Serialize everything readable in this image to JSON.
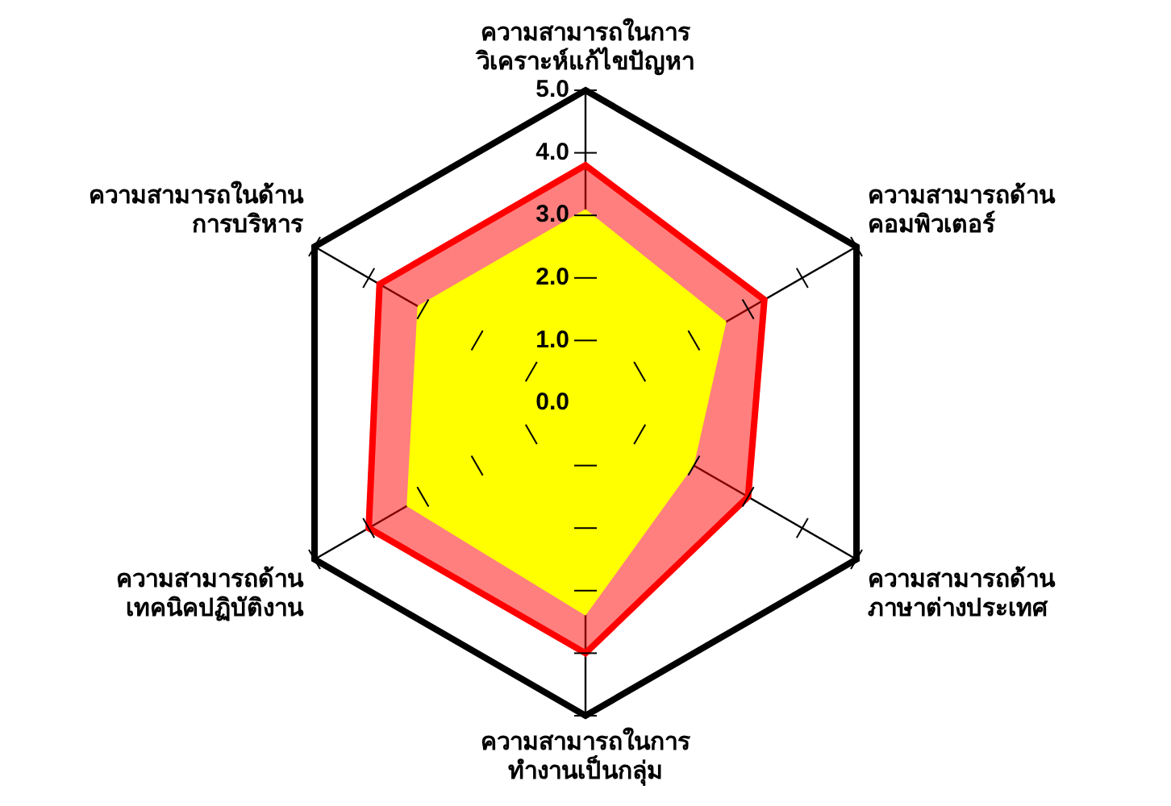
{
  "chart_data": {
    "type": "radar",
    "categories": [
      "ความสามารถในการ\nวิเคราะห์แก้ไขปัญหา",
      "ความสามารถด้าน\nคอมพิวเตอร์",
      "ความสามารถด้าน\nภาษาต่างประเทศ",
      "ความสามารถในการ\nทำงานเป็นกลุ่ม",
      "ความสามารถด้าน\nเทคนิคปฏิบัติงาน",
      "ความสามารถในด้าน\nการบริหาร"
    ],
    "series": [
      {
        "color": "#ff0000",
        "values": [
          3.8,
          3.3,
          3.0,
          4.0,
          4.0,
          3.8
        ]
      },
      {
        "color": "#ffff00",
        "values": [
          3.1,
          2.6,
          2.0,
          3.4,
          3.3,
          3.1
        ]
      }
    ],
    "ylim": [
      0,
      5
    ],
    "yticks": [
      {
        "value": 0,
        "label": "0.0"
      },
      {
        "value": 1,
        "label": "1.0"
      },
      {
        "value": 2,
        "label": "2.0"
      },
      {
        "value": 3,
        "label": "3.0"
      },
      {
        "value": 4,
        "label": "4.0"
      },
      {
        "value": 5,
        "label": "5.0"
      }
    ],
    "legend": false
  }
}
